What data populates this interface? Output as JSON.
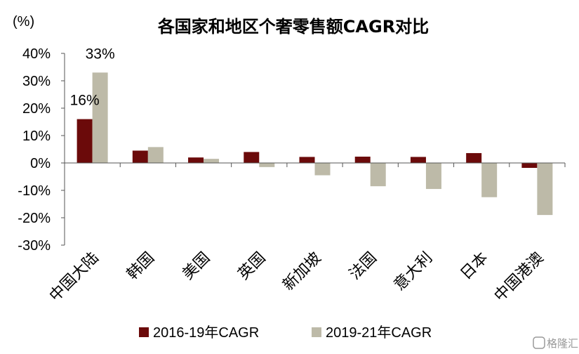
{
  "chart_data": {
    "type": "bar",
    "title": "各国家和地区个奢零售额CAGR对比",
    "unit_label": "(%)",
    "categories": [
      "中国大陆",
      "韩国",
      "美国",
      "英国",
      "新加坡",
      "法国",
      "意大利",
      "日本",
      "中国港澳"
    ],
    "series": [
      {
        "name": "2016-19年CAGR",
        "color": "#6b0a0a",
        "values": [
          16,
          4.5,
          2,
          4,
          2.2,
          2.3,
          2.2,
          3.6,
          -1.8
        ]
      },
      {
        "name": "2019-21年CAGR",
        "color": "#bdbaa8",
        "values": [
          33,
          5.8,
          1.5,
          -1.5,
          -4.5,
          -8.5,
          -9.5,
          -12.5,
          -19
        ]
      }
    ],
    "data_labels": [
      {
        "series": 0,
        "index": 0,
        "text": "16%"
      },
      {
        "series": 1,
        "index": 0,
        "text": "33%"
      }
    ],
    "ylim": [
      -30,
      40
    ],
    "yticks": [
      40,
      30,
      20,
      10,
      0,
      -10,
      -20,
      -30
    ],
    "ytick_labels": [
      "40%",
      "30%",
      "20%",
      "10%",
      "0%",
      "-10%",
      "-20%",
      "-30%"
    ],
    "xlabel": "",
    "ylabel": "",
    "grid": false,
    "legend_position": "bottom"
  },
  "watermark": "格隆汇"
}
